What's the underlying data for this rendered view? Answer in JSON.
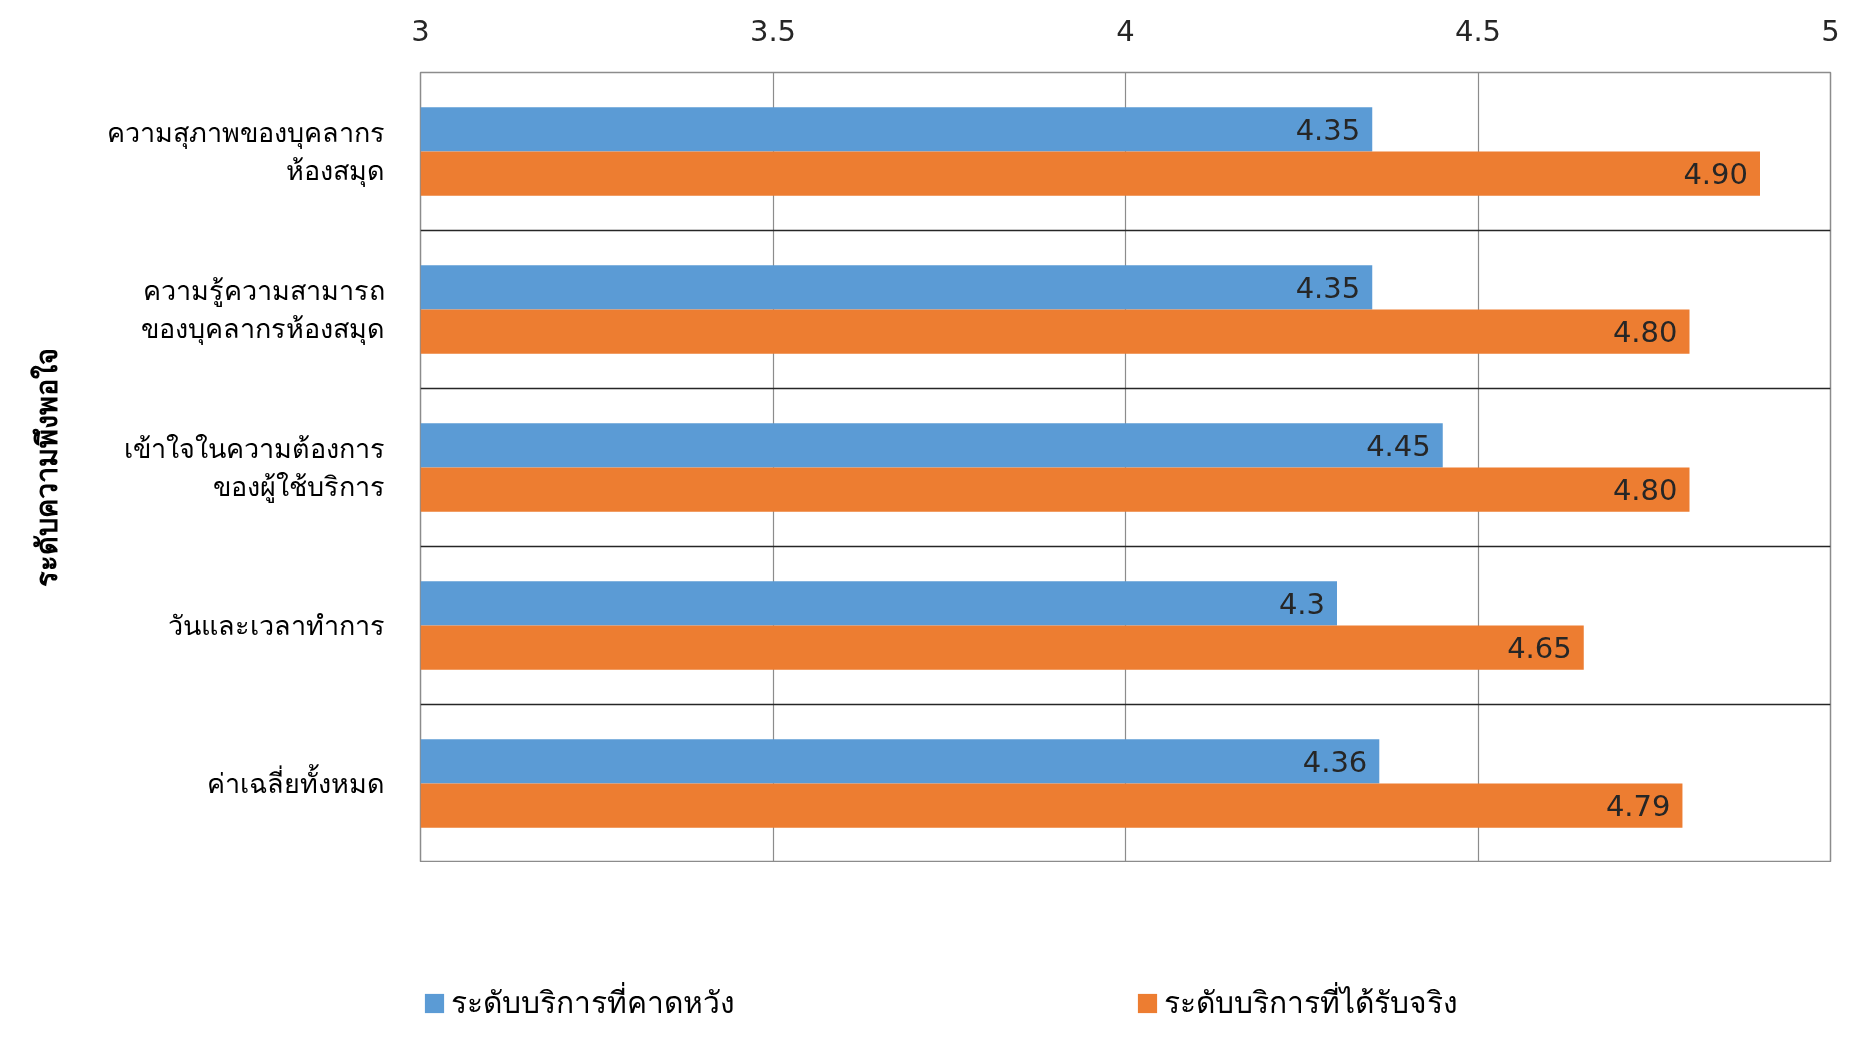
{
  "chart_data": {
    "type": "bar",
    "orientation": "horizontal",
    "ylabel": "ระดับความพึงพอใจ",
    "categories": [
      "ความสุภาพของบุคลากร\nห้องสมุด",
      "ความรู้ความสามารถ\nของบุคลากรห้องสมุด",
      "เข้าใจในความต้องการ\nของผู้ใช้บริการ",
      "วันและเวลาทำการ",
      "ค่าเฉลี่ยทั้งหมด"
    ],
    "series": [
      {
        "name": "ระดับบริการที่คาดหวัง",
        "color": "#5b9bd5",
        "values": [
          4.35,
          4.35,
          4.45,
          4.3,
          4.36
        ],
        "value_labels": [
          "4.35",
          "4.35",
          "4.45",
          "4.3",
          "4.36"
        ]
      },
      {
        "name": "ระดับบริการที่ได้รับจริง",
        "color": "#ed7d31",
        "values": [
          4.9,
          4.8,
          4.8,
          4.65,
          4.79
        ],
        "value_labels": [
          "4.90",
          "4.80",
          "4.80",
          "4.65",
          "4.79"
        ]
      }
    ],
    "xlim": [
      3,
      5
    ],
    "xticks": [
      3,
      3.5,
      4,
      4.5,
      5
    ],
    "grid": true,
    "legend": "bottom"
  }
}
